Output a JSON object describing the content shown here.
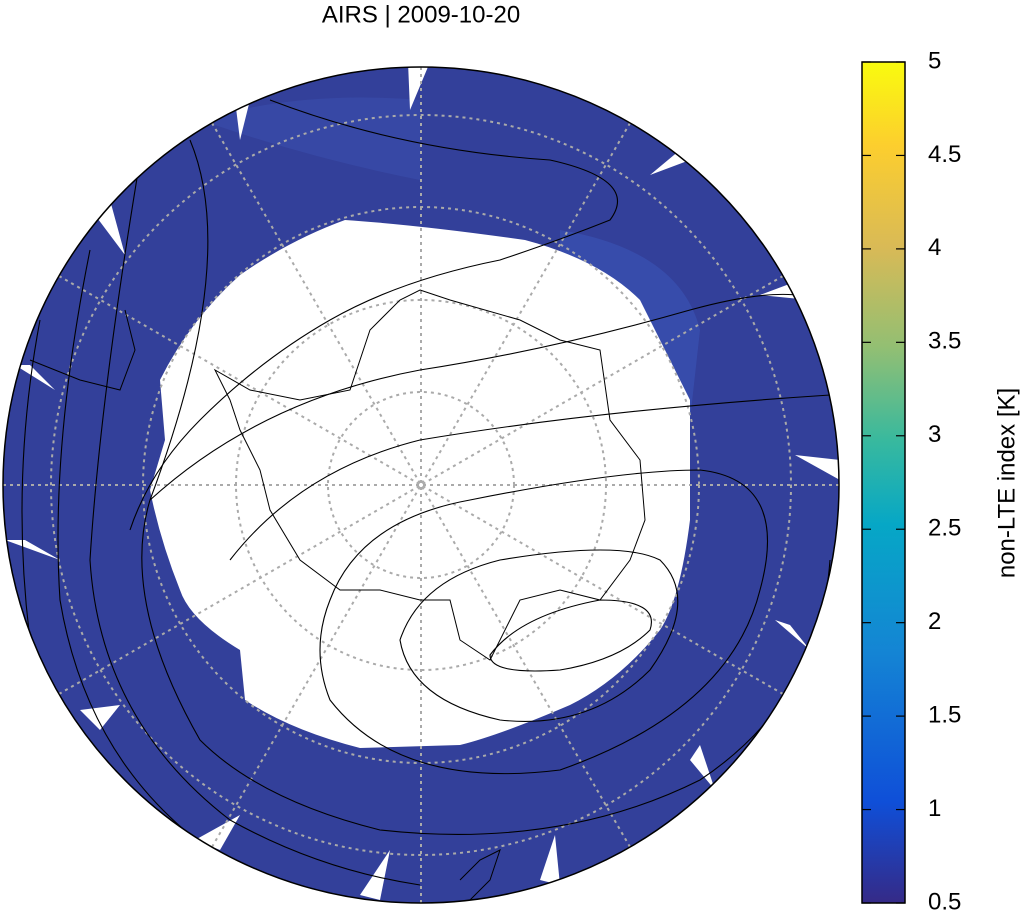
{
  "title": "AIRS | 2009-10-20",
  "colorbar": {
    "label": "non-LTE index [K]",
    "lim": [
      0.5,
      5
    ],
    "ticks": [
      0.5,
      1,
      1.5,
      2,
      2.5,
      3,
      3.5,
      4,
      4.5,
      5
    ]
  }
}
